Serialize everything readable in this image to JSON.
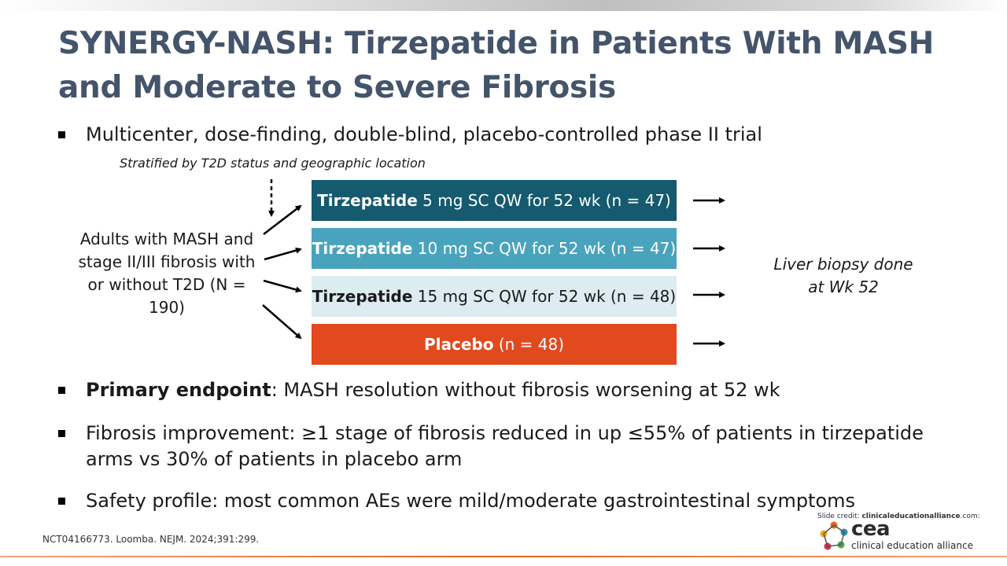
{
  "title": "SYNERGY-NASH: Tirzepatide in Patients With MASH and Moderate to Severe Fibrosis",
  "bullets": {
    "design": "Multicenter, dose-finding, double-blind, placebo-controlled phase II trial",
    "primary_label": "Primary endpoint",
    "primary_text": ": MASH resolution without fibrosis worsening at 52 wk",
    "fibrosis": "Fibrosis improvement: ≥1 stage of fibrosis reduced in up ≤55% of patients in tirzepatide arms vs 30% of patients in placebo arm",
    "safety": "Safety profile: most common AEs were mild/moderate gastrointestinal symptoms"
  },
  "diagram": {
    "stratification": "Stratified by T2D status and geographic location",
    "population": "Adults with MASH and stage II/III fibrosis with or without T2D (N = 190)",
    "arms": [
      {
        "drug": "Tirzepatide",
        "detail": " 5 mg SC QW for 52 wk (n = 47)",
        "color": "#155a6e"
      },
      {
        "drug": "Tirzepatide",
        "detail": " 10 mg SC QW for 52 wk (n = 47)",
        "color": "#4aa3bd"
      },
      {
        "drug": "Tirzepatide",
        "detail": " 15 mg SC QW for 52 wk (n = 48)",
        "color": "#dcecf1"
      },
      {
        "drug": "Placebo",
        "detail": " (n = 48)",
        "color": "#e04a1e"
      }
    ],
    "outcome": "Liver biopsy done at Wk 52"
  },
  "footer": {
    "citation": "NCT04166773. Loomba. NEJM. 2024;391:299.",
    "credit_prefix": "Slide credit: ",
    "credit_site": "clinicaleducationalliance",
    "credit_suffix": ".com:",
    "logo_short": "cea",
    "logo_full": "clinical education alliance"
  }
}
